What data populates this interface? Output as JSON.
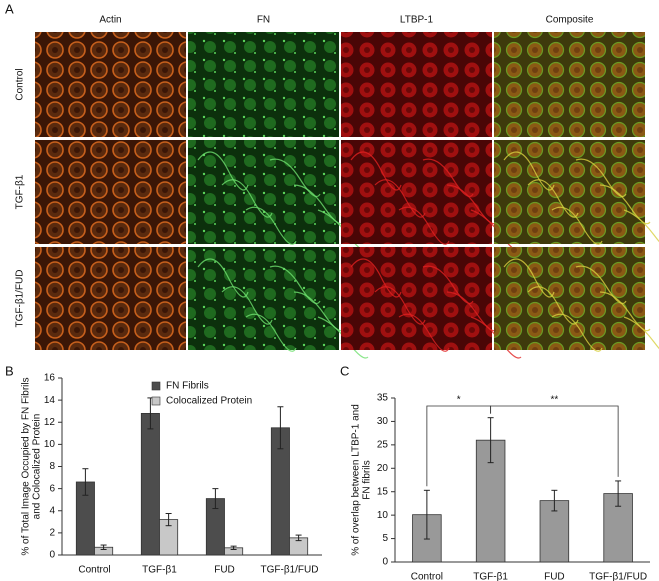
{
  "panel_labels": [
    "A",
    "B",
    "C"
  ],
  "micrographs": {
    "columns": [
      "Actin",
      "FN",
      "LTBP-1",
      "Composite"
    ],
    "rows": [
      "Control",
      "TGF-β1",
      "TGF-β1/FUD"
    ]
  },
  "chart_data": [
    {
      "type": "bar",
      "ylabel": [
        "% of Total Image Occupied by FN Fibrils",
        "and Colocalized Protein"
      ],
      "categories": [
        "Control",
        "TGF-β1",
        "FUD",
        "TGF-β1/FUD"
      ],
      "series": [
        {
          "name": "FN Fibrils",
          "color": "#4d4d4d",
          "values": [
            6.6,
            12.8,
            5.1,
            11.5
          ],
          "errors": [
            1.2,
            1.4,
            0.9,
            1.9
          ]
        },
        {
          "name": "Colocalized Protein",
          "color": "#c8c8c8",
          "values": [
            0.7,
            3.2,
            0.65,
            1.55
          ],
          "errors": [
            0.2,
            0.55,
            0.15,
            0.25
          ]
        }
      ],
      "ylim": [
        0,
        16
      ],
      "yticks": [
        0,
        2,
        4,
        6,
        8,
        10,
        12,
        14,
        16
      ],
      "legend": "top"
    },
    {
      "type": "bar",
      "ylabel": [
        "% of overlap between LTBP-1 and",
        "FN fibrils"
      ],
      "categories": [
        "Control",
        "TGF-β1",
        "FUD",
        "TGF-β1/FUD"
      ],
      "series": [
        {
          "color": "#999999",
          "values": [
            10.1,
            26,
            13.1,
            14.6
          ],
          "errors": [
            5.2,
            4.8,
            2.2,
            2.7
          ]
        }
      ],
      "ylim": [
        0,
        35
      ],
      "yticks": [
        0,
        5,
        10,
        15,
        20,
        25,
        30,
        35
      ],
      "annotations": [
        "*",
        "**"
      ]
    }
  ]
}
